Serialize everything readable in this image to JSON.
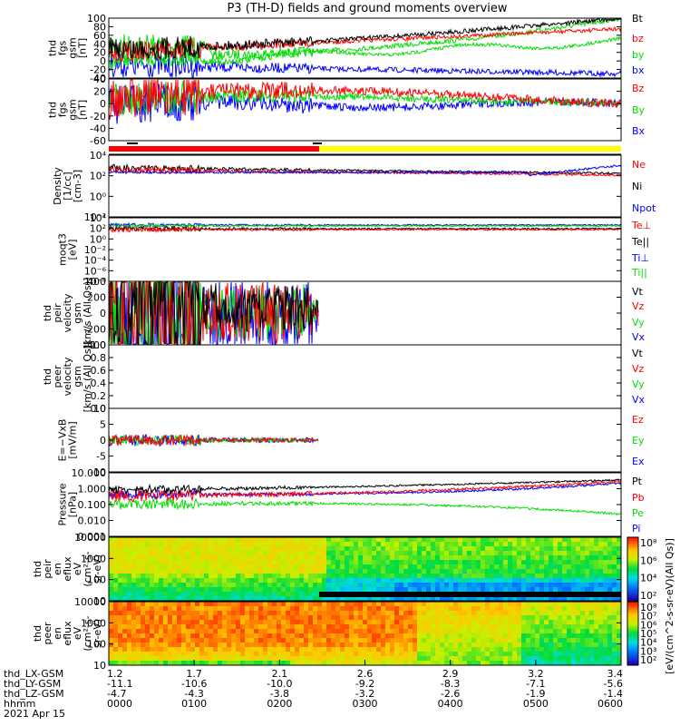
{
  "title": "P3 (TH-D) fields and ground moments overview",
  "date_label": "2021 Apr 15",
  "colors": {
    "black": "#000000",
    "red": "#ff0000",
    "green": "#00dd00",
    "blue": "#0000ff",
    "yellow": "#ffff00"
  },
  "chart_data": [
    {
      "type": "line",
      "ylabel": [
        "thd",
        "fgs",
        "gsm",
        "[nT]"
      ],
      "ylim": [
        -40,
        100
      ],
      "yticks": [
        "100",
        "80",
        "60",
        "40",
        "20",
        "0",
        "-20",
        "-40"
      ],
      "series": [
        {
          "name": "Bt",
          "color": "black"
        },
        {
          "name": "bz",
          "color": "red"
        },
        {
          "name": "by",
          "color": "green"
        },
        {
          "name": "bx",
          "color": "blue"
        }
      ]
    },
    {
      "type": "line",
      "ylabel": [
        "thd",
        "fgs",
        "gsm",
        "[nT]"
      ],
      "ylim": [
        -70,
        40
      ],
      "yticks": [
        "40",
        "20",
        "0",
        "-20",
        "-40",
        "-60"
      ],
      "series": [
        {
          "name": "Bz",
          "color": "red"
        },
        {
          "name": "By",
          "color": "green"
        },
        {
          "name": "Bx",
          "color": "blue"
        }
      ]
    },
    {
      "type": "line",
      "ylabel": [
        "Density",
        "[1/cc]",
        "[cm-3]"
      ],
      "ylim": [
        0.001,
        10000
      ],
      "yticks": [
        "10⁴",
        "10²",
        "10⁰",
        "10⁻²"
      ],
      "series": [
        {
          "name": "Ne",
          "color": "red"
        },
        {
          "name": "Ni",
          "color": "black"
        },
        {
          "name": "Npot",
          "color": "blue"
        }
      ]
    },
    {
      "type": "line",
      "ylabel": [
        "moqt3",
        "[eV]"
      ],
      "ylim": [
        1,
        100000
      ],
      "yticks": [
        "10⁴",
        "10²",
        "10⁰",
        "10⁻²",
        "10⁻⁴",
        "10⁻⁶",
        "10⁻⁸"
      ],
      "series": [
        {
          "name": "Te⊥",
          "color": "red"
        },
        {
          "name": "Te||",
          "color": "black"
        },
        {
          "name": "Ti⊥",
          "color": "blue"
        },
        {
          "name": "Ti||",
          "color": "green"
        }
      ]
    },
    {
      "type": "line",
      "ylabel": [
        "thd",
        "peir",
        "velocity",
        "gsm",
        "[km/s (All Qs)]"
      ],
      "ylim": [
        -400,
        400
      ],
      "yticks": [
        "400",
        "200",
        "0",
        "-200",
        "-400"
      ],
      "series": [
        {
          "name": "Vt",
          "color": "black"
        },
        {
          "name": "Vz",
          "color": "red"
        },
        {
          "name": "Vy",
          "color": "green"
        },
        {
          "name": "Vx",
          "color": "blue"
        }
      ]
    },
    {
      "type": "line",
      "ylabel": [
        "thd",
        "peer",
        "velocity",
        "gsm",
        "[km/s (All Qs)]"
      ],
      "ylim": [
        0,
        1
      ],
      "yticks": [
        "1.0",
        "0.8",
        "0.6",
        "0.4",
        "0.2",
        "0.0"
      ],
      "series": [
        {
          "name": "Vt",
          "color": "black"
        },
        {
          "name": "Vz",
          "color": "red"
        },
        {
          "name": "Vy",
          "color": "green"
        },
        {
          "name": "Vx",
          "color": "blue"
        }
      ]
    },
    {
      "type": "line",
      "ylabel": [
        "E=−VxB",
        "[mV/m]"
      ],
      "ylim": [
        -10,
        10
      ],
      "yticks": [
        "10",
        "5",
        "0",
        "-5",
        "-10"
      ],
      "series": [
        {
          "name": "Ez",
          "color": "red"
        },
        {
          "name": "Ey",
          "color": "green"
        },
        {
          "name": "Ex",
          "color": "blue"
        }
      ]
    },
    {
      "type": "line",
      "ylabel": [
        "Pressure",
        "[nPa]"
      ],
      "ylim": [
        0.001,
        10
      ],
      "yticks": [
        "10.000",
        "1.000",
        "0.100",
        "0.010",
        "0.001"
      ],
      "series": [
        {
          "name": "Pt",
          "color": "black"
        },
        {
          "name": "Pb",
          "color": "red"
        },
        {
          "name": "Pe",
          "color": "green"
        },
        {
          "name": "Pi",
          "color": "blue"
        }
      ]
    },
    {
      "type": "heatmap",
      "ylabel": [
        "thd",
        "peir",
        "en",
        "eflux",
        "eV",
        "(cm²-s-",
        "sr-eV)"
      ],
      "yticks": [
        "10000",
        "1000",
        "100",
        "10"
      ]
    },
    {
      "type": "heatmap",
      "ylabel": [
        "thd",
        "peer",
        "en",
        "eflux",
        "eV",
        "(cm²-s-",
        "sr-eV)"
      ],
      "yticks": [
        "10000",
        "1000",
        "100",
        "10"
      ]
    }
  ],
  "colorbar": {
    "label": "[eV/(cm^2-s-sr-eV)(All Qs)]",
    "upper_ticks": [
      "10⁸",
      "10⁶",
      "10⁴",
      "10²"
    ],
    "lower_ticks": [
      "10⁸",
      "10⁷",
      "10⁶",
      "10⁵",
      "10⁴",
      "10³",
      "10²"
    ]
  },
  "xaxis": {
    "rows": [
      {
        "label": "thd_LX-GSM",
        "values": [
          "1.2",
          "1.7",
          "2.1",
          "2.6",
          "2.9",
          "3.2",
          "3.4"
        ]
      },
      {
        "label": "thd_LY-GSM",
        "values": [
          "-11.1",
          "-10.6",
          "-10.0",
          "-9.2",
          "-8.3",
          "-7.1",
          "-5.6"
        ]
      },
      {
        "label": "thd_LZ-GSM",
        "values": [
          "-4.7",
          "-4.3",
          "-3.8",
          "-3.2",
          "-2.6",
          "-1.9",
          "-1.4"
        ]
      },
      {
        "label": "hhmm",
        "values": [
          "0000",
          "0100",
          "0200",
          "0300",
          "0400",
          "0500",
          "0600"
        ]
      }
    ]
  }
}
